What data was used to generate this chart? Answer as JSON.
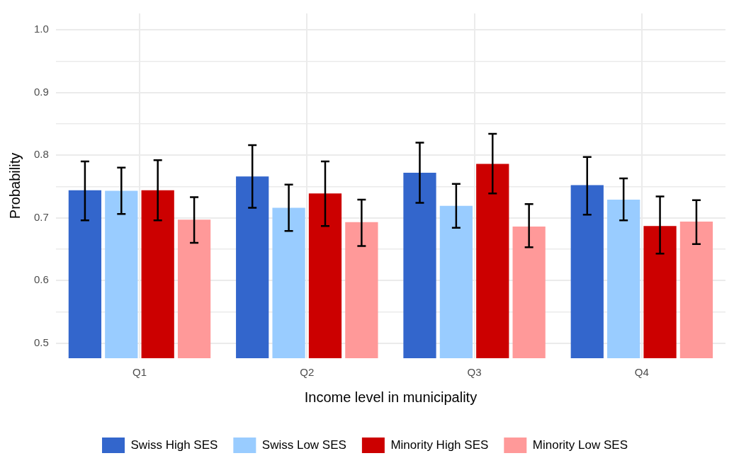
{
  "chart_data": {
    "type": "bar",
    "xlabel": "Income level in municipality",
    "ylabel": "Probability",
    "categories": [
      "Q1",
      "Q2",
      "Q3",
      "Q4"
    ],
    "series": [
      {
        "name": "Swiss High SES",
        "color": "#3366cc",
        "values": [
          0.744,
          0.766,
          0.772,
          0.752
        ],
        "errors": [
          [
            0.696,
            0.79
          ],
          [
            0.716,
            0.816
          ],
          [
            0.724,
            0.82
          ],
          [
            0.705,
            0.797
          ]
        ]
      },
      {
        "name": "Swiss Low SES",
        "color": "#99ccff",
        "values": [
          0.743,
          0.716,
          0.719,
          0.729
        ],
        "errors": [
          [
            0.706,
            0.78
          ],
          [
            0.679,
            0.753
          ],
          [
            0.684,
            0.754
          ],
          [
            0.696,
            0.763
          ]
        ]
      },
      {
        "name": "Minority High SES",
        "color": "#cc0000",
        "values": [
          0.744,
          0.739,
          0.786,
          0.687
        ],
        "errors": [
          [
            0.696,
            0.792
          ],
          [
            0.687,
            0.79
          ],
          [
            0.739,
            0.834
          ],
          [
            0.643,
            0.734
          ]
        ]
      },
      {
        "name": "Minority Low SES",
        "color": "#ff9999",
        "values": [
          0.697,
          0.693,
          0.686,
          0.694
        ],
        "errors": [
          [
            0.66,
            0.733
          ],
          [
            0.655,
            0.729
          ],
          [
            0.653,
            0.722
          ],
          [
            0.658,
            0.728
          ]
        ]
      }
    ],
    "ylim": [
      0.476,
      1.026
    ],
    "yticks": [
      0.5,
      {
        "value": 0.55,
        "label": null
      },
      0.6,
      {
        "value": 0.65,
        "label": null
      },
      0.7,
      {
        "value": 0.75,
        "label": null
      },
      0.8,
      {
        "value": 0.85,
        "label": null
      },
      0.9,
      {
        "value": 0.95,
        "label": null
      },
      {
        "value": 1.0,
        "label": "1.0"
      }
    ],
    "grid": true,
    "legend": "bottom"
  }
}
